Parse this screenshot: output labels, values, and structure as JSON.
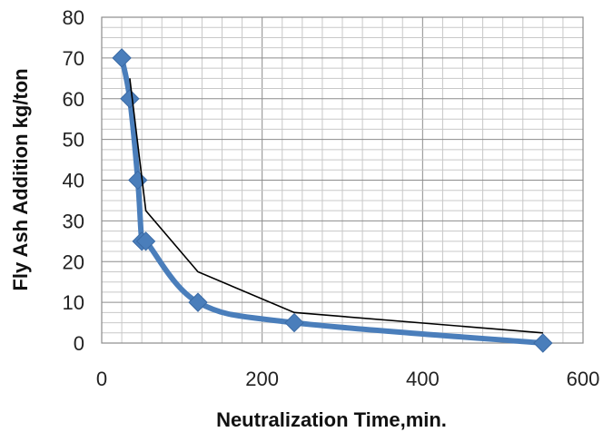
{
  "chart_data": {
    "type": "line",
    "xlabel": "Neutralization Time,min.",
    "ylabel": "Fly Ash Addition kg/ton",
    "xlim": [
      0,
      600
    ],
    "ylim": [
      0,
      80
    ],
    "x_ticks": [
      "0",
      "200",
      "400",
      "600"
    ],
    "y_ticks": [
      "0",
      "10",
      "20",
      "30",
      "40",
      "50",
      "60",
      "70",
      "80"
    ],
    "grid": true,
    "legend": "none",
    "series": [
      {
        "style": "smooth line with diamond markers",
        "color": "#4a7ebb",
        "x": [
          25,
          35,
          45,
          50,
          55,
          120,
          240,
          550
        ],
        "y": [
          70,
          60,
          40,
          25,
          25,
          10,
          5,
          0
        ]
      },
      {
        "style": "thin line",
        "color": "#000000",
        "x": [
          35,
          55,
          120,
          240,
          550
        ],
        "y": [
          65,
          32.5,
          17.5,
          7.5,
          2.5
        ]
      }
    ]
  }
}
